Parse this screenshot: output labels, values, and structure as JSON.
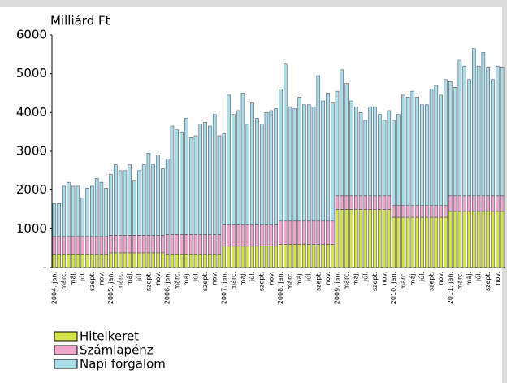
{
  "chart_data": {
    "type": "stacked_bar",
    "ylabel": "Milliárd Ft",
    "categories": [
      "2004. jan.",
      null,
      "márc.",
      null,
      "máj.",
      null,
      "júl.",
      null,
      "szept.",
      null,
      "nov.",
      null,
      "2005. jan.",
      null,
      "márc.",
      null,
      "máj.",
      null,
      "júl.",
      null,
      "szept.",
      null,
      "nov.",
      null,
      "2006. jan.",
      null,
      "márc.",
      null,
      "máj.",
      null,
      "júl.",
      null,
      "szept.",
      null,
      "nov.",
      null,
      "2007. jan.",
      null,
      "márc.",
      null,
      "máj.",
      null,
      "júl.",
      null,
      "szept.",
      null,
      "nov.",
      null,
      "2008. jan.",
      null,
      "márc.",
      null,
      "máj.",
      null,
      "júl.",
      null,
      "szept.",
      null,
      "nov.",
      null,
      "2009. jan.",
      null,
      "márc.",
      null,
      "máj.",
      null,
      "júl.",
      null,
      "szept.",
      null,
      "nov.",
      null,
      "2010. jan.",
      null,
      "márc.",
      null,
      "máj.",
      null,
      "júl.",
      null,
      "szept.",
      null,
      "nov.",
      null,
      "2011. jan.",
      null,
      "márc.",
      null,
      "máj.",
      null,
      "júl.",
      null,
      "szept.",
      null,
      "nov.",
      null
    ],
    "series": [
      {
        "name": "Hitelkeret",
        "color": "#d6e24c",
        "values": [
          350,
          350,
          350,
          350,
          350,
          350,
          350,
          350,
          350,
          350,
          350,
          350,
          380,
          380,
          380,
          380,
          380,
          380,
          380,
          380,
          380,
          380,
          380,
          380,
          350,
          350,
          350,
          350,
          350,
          350,
          350,
          350,
          350,
          350,
          350,
          350,
          550,
          550,
          550,
          550,
          550,
          550,
          550,
          550,
          550,
          550,
          550,
          550,
          600,
          600,
          600,
          600,
          600,
          600,
          600,
          600,
          600,
          600,
          600,
          600,
          1500,
          1500,
          1500,
          1500,
          1500,
          1500,
          1500,
          1500,
          1500,
          1500,
          1500,
          1500,
          1300,
          1300,
          1300,
          1300,
          1300,
          1300,
          1300,
          1300,
          1300,
          1300,
          1300,
          1300,
          1450,
          1450,
          1450,
          1450,
          1450,
          1450,
          1450,
          1450,
          1450,
          1450,
          1450,
          1450
        ]
      },
      {
        "name": "Számlapénz",
        "color": "#f0a6cc",
        "values": [
          450,
          450,
          450,
          450,
          450,
          450,
          450,
          450,
          450,
          450,
          450,
          450,
          450,
          450,
          450,
          450,
          450,
          450,
          450,
          450,
          450,
          450,
          450,
          450,
          500,
          500,
          500,
          500,
          500,
          500,
          500,
          500,
          500,
          500,
          500,
          500,
          550,
          550,
          550,
          550,
          550,
          550,
          550,
          550,
          550,
          550,
          550,
          550,
          600,
          600,
          600,
          600,
          600,
          600,
          600,
          600,
          600,
          600,
          600,
          600,
          350,
          350,
          350,
          350,
          350,
          350,
          350,
          350,
          350,
          350,
          350,
          350,
          300,
          300,
          300,
          300,
          300,
          300,
          300,
          300,
          300,
          300,
          300,
          300,
          400,
          400,
          400,
          400,
          400,
          400,
          400,
          400,
          400,
          400,
          400,
          400
        ]
      },
      {
        "name": "Napi forgalom",
        "color": "#a9dde9",
        "values": [
          850,
          850,
          1300,
          1400,
          1300,
          1300,
          1000,
          1250,
          1300,
          1500,
          1400,
          1250,
          1570,
          1820,
          1670,
          1670,
          1820,
          1420,
          1670,
          1820,
          2120,
          1820,
          2070,
          1720,
          1950,
          2800,
          2700,
          2650,
          3000,
          2500,
          2550,
          2850,
          2900,
          2800,
          3100,
          2550,
          2350,
          3350,
          2850,
          2950,
          3400,
          2600,
          3150,
          2750,
          2600,
          2900,
          2950,
          3000,
          3400,
          4050,
          2950,
          2900,
          3200,
          3000,
          3000,
          2950,
          3750,
          3100,
          3300,
          3050,
          2700,
          3250,
          2900,
          2450,
          2300,
          2150,
          1950,
          2300,
          2300,
          2100,
          1950,
          2200,
          2200,
          2350,
          2850,
          2800,
          2950,
          2800,
          2600,
          2600,
          3000,
          3100,
          2850,
          3250,
          2950,
          2800,
          3500,
          3350,
          3000,
          3800,
          3350,
          3700,
          3300,
          3000,
          3350,
          3300
        ]
      }
    ],
    "ylim": [
      0,
      6000
    ],
    "yticks": [
      {
        "value": 0,
        "label": "-"
      },
      1000,
      2000,
      3000,
      4000,
      5000,
      6000
    ]
  }
}
